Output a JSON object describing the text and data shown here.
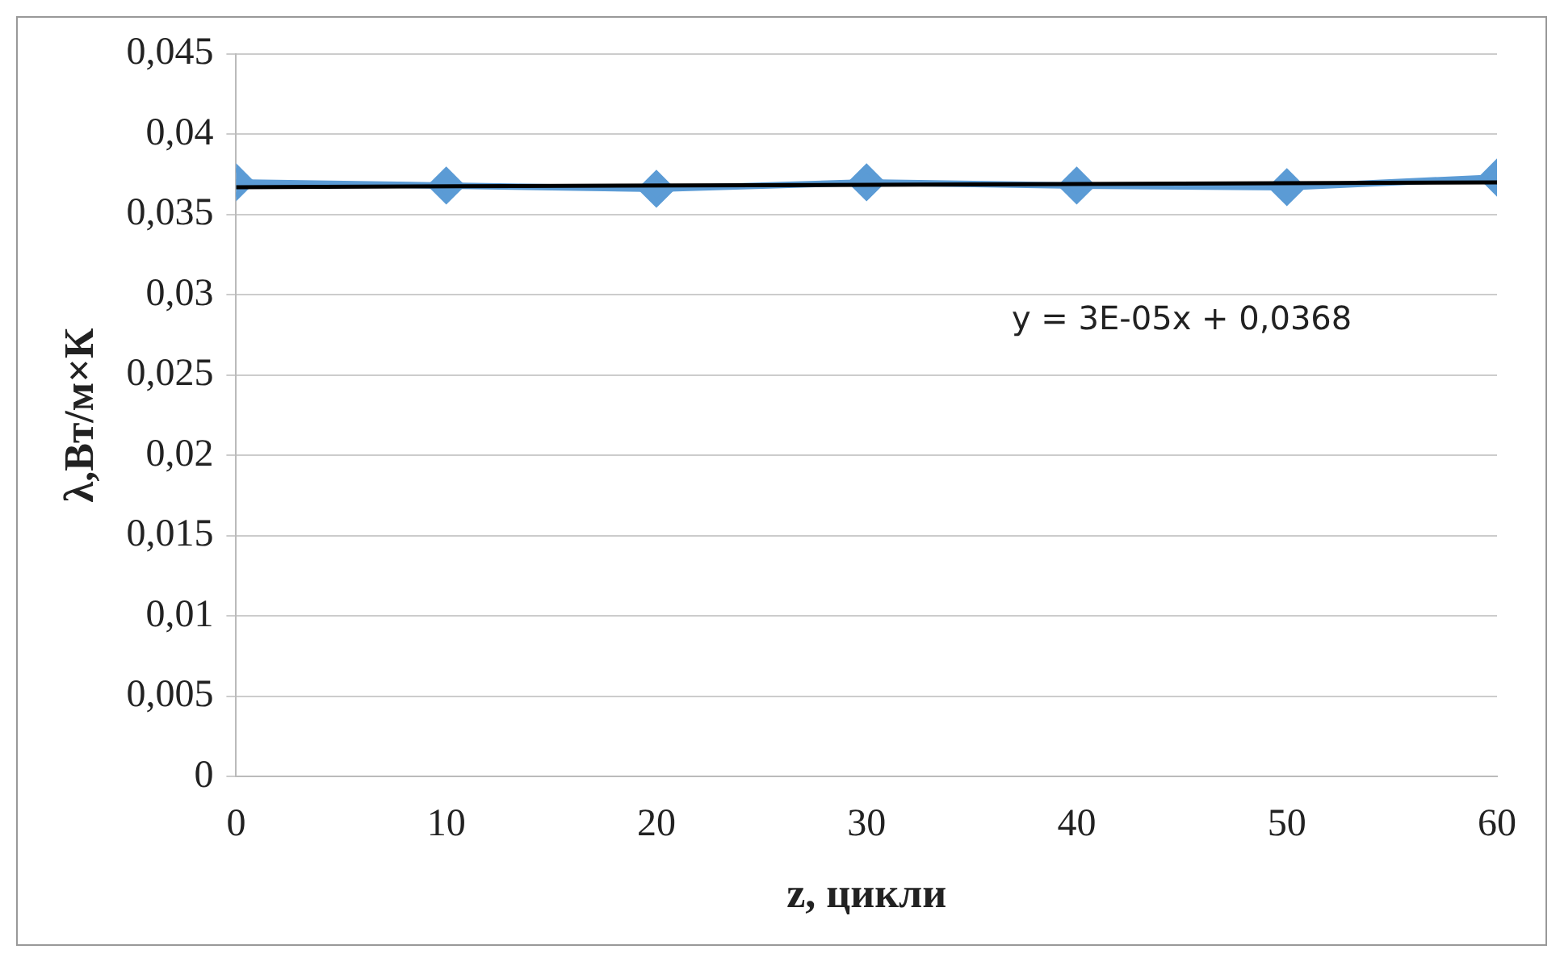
{
  "chart_data": {
    "type": "line",
    "xlabel": "z, цикли",
    "ylabel": "λ,Вт/м×К",
    "x": [
      0,
      10,
      20,
      30,
      40,
      50,
      60
    ],
    "series": [
      {
        "color": "#5b9bd5",
        "marker": "diamond",
        "values": [
          0.037,
          0.0368,
          0.0366,
          0.037,
          0.0368,
          0.0367,
          0.0373
        ]
      },
      {
        "type": "line",
        "color": "#000000",
        "marker": "none",
        "x": [
          0,
          60
        ],
        "values": [
          0.0367,
          0.037
        ]
      }
    ],
    "xlim": [
      0,
      60
    ],
    "xticks": [
      0,
      10,
      20,
      30,
      40,
      50,
      60
    ],
    "ylim": [
      0,
      0.045
    ],
    "yticks": [
      0,
      {
        "value": 0.005,
        "label": "0,005"
      },
      {
        "value": 0.01,
        "label": "0,01"
      },
      {
        "value": 0.015,
        "label": "0,015"
      },
      {
        "value": 0.02,
        "label": "0,02"
      },
      {
        "value": 0.025,
        "label": "0,025"
      },
      {
        "value": 0.03,
        "label": "0,03"
      },
      {
        "value": 0.035,
        "label": "0,035"
      },
      {
        "value": 0.04,
        "label": "0,04"
      },
      {
        "value": 0.045,
        "label": "0,045"
      }
    ],
    "grid": "y",
    "legend": false,
    "annotations": [
      "y = 3E-05x + 0,0368"
    ]
  }
}
